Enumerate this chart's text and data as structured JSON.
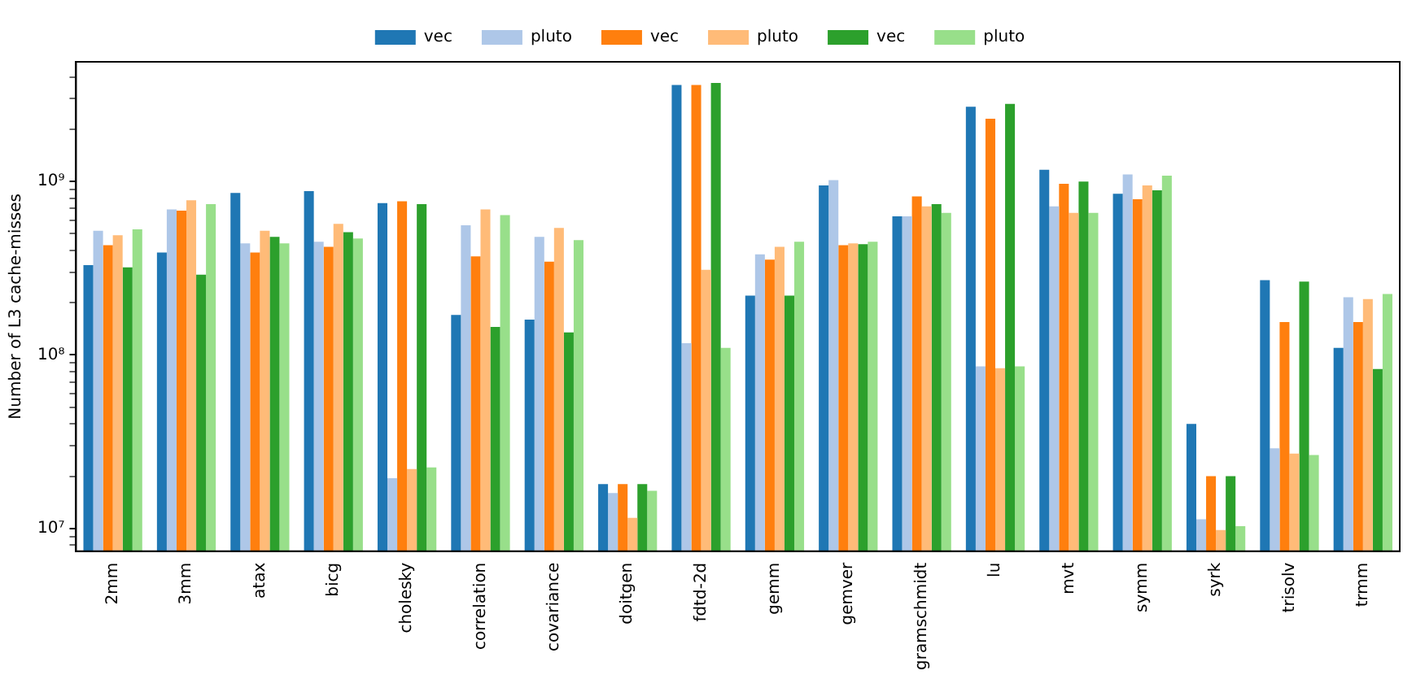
{
  "chart_data": {
    "type": "bar",
    "ylabel": "Number of L3 cache-misses",
    "log": "y",
    "grid": false,
    "legend": "top",
    "categories": [
      "2mm",
      "3mm",
      "atax",
      "bicg",
      "cholesky",
      "correlation",
      "covariance",
      "doitgen",
      "fdtd-2d",
      "gemm",
      "gemver",
      "gramschmidt",
      "lu",
      "mvt",
      "symm",
      "syrk",
      "trisolv",
      "trmm"
    ],
    "ylim": [
      7400000.0,
      4900000000.0
    ],
    "yticks": [
      {
        "value": 8000000.0,
        "label": null
      },
      {
        "value": 9000000.0,
        "label": null
      },
      {
        "value": 10000000.0,
        "label": "10⁷"
      },
      {
        "value": 20000000.0,
        "label": null
      },
      {
        "value": 30000000.0,
        "label": null
      },
      {
        "value": 40000000.0,
        "label": null
      },
      {
        "value": 50000000.0,
        "label": null
      },
      {
        "value": 60000000.0,
        "label": null
      },
      {
        "value": 70000000.0,
        "label": null
      },
      {
        "value": 80000000.0,
        "label": null
      },
      {
        "value": 90000000.0,
        "label": null
      },
      {
        "value": 100000000.0,
        "label": "10⁸"
      },
      {
        "value": 200000000.0,
        "label": null
      },
      {
        "value": 300000000.0,
        "label": null
      },
      {
        "value": 400000000.0,
        "label": null
      },
      {
        "value": 500000000.0,
        "label": null
      },
      {
        "value": 600000000.0,
        "label": null
      },
      {
        "value": 700000000.0,
        "label": null
      },
      {
        "value": 800000000.0,
        "label": null
      },
      {
        "value": 900000000.0,
        "label": null
      },
      {
        "value": 1000000000.0,
        "label": "10⁹"
      },
      {
        "value": 2000000000.0,
        "label": null
      },
      {
        "value": 3000000000.0,
        "label": null
      },
      {
        "value": 4000000000.0,
        "label": null
      }
    ],
    "series": [
      {
        "name": "vec",
        "color": "#1f77b4",
        "values": [
          330000000.0,
          390000000.0,
          860000000.0,
          880000000.0,
          750000000.0,
          170000000.0,
          160000000.0,
          18000000.0,
          3600000000.0,
          220000000.0,
          950000000.0,
          630000000.0,
          2700000000.0,
          1170000000.0,
          850000000.0,
          40000000.0,
          270000000.0,
          110000000.0
        ]
      },
      {
        "name": "pluto",
        "color": "#aec7e8",
        "values": [
          520000000.0,
          690000000.0,
          440000000.0,
          450000000.0,
          19500000.0,
          560000000.0,
          480000000.0,
          16000000.0,
          117000000.0,
          380000000.0,
          1020000000.0,
          630000000.0,
          86000000.0,
          720000000.0,
          1100000000.0,
          11300000.0,
          29000000.0,
          215000000.0
        ]
      },
      {
        "name": "vec",
        "color": "#ff7f0e",
        "values": [
          430000000.0,
          680000000.0,
          390000000.0,
          420000000.0,
          770000000.0,
          370000000.0,
          345000000.0,
          18000000.0,
          3600000000.0,
          355000000.0,
          430000000.0,
          820000000.0,
          2300000000.0,
          970000000.0,
          790000000.0,
          20000000.0,
          155000000.0,
          155000000.0
        ]
      },
      {
        "name": "pluto",
        "color": "#ffbb78",
        "values": [
          490000000.0,
          780000000.0,
          520000000.0,
          570000000.0,
          22000000.0,
          690000000.0,
          540000000.0,
          11500000.0,
          310000000.0,
          420000000.0,
          440000000.0,
          720000000.0,
          84000000.0,
          660000000.0,
          950000000.0,
          9800000.0,
          27000000.0,
          210000000.0
        ]
      },
      {
        "name": "vec",
        "color": "#2ca02c",
        "values": [
          320000000.0,
          290000000.0,
          480000000.0,
          510000000.0,
          740000000.0,
          145000000.0,
          135000000.0,
          18000000.0,
          3700000000.0,
          220000000.0,
          435000000.0,
          740000000.0,
          2800000000.0,
          1000000000.0,
          890000000.0,
          20000000.0,
          265000000.0,
          83000000.0
        ]
      },
      {
        "name": "pluto",
        "color": "#98df8a",
        "values": [
          530000000.0,
          740000000.0,
          440000000.0,
          470000000.0,
          22500000.0,
          640000000.0,
          460000000.0,
          16500000.0,
          110000000.0,
          450000000.0,
          450000000.0,
          660000000.0,
          86000000.0,
          660000000.0,
          1080000000.0,
          10300000.0,
          26500000.0,
          225000000.0
        ]
      }
    ]
  }
}
